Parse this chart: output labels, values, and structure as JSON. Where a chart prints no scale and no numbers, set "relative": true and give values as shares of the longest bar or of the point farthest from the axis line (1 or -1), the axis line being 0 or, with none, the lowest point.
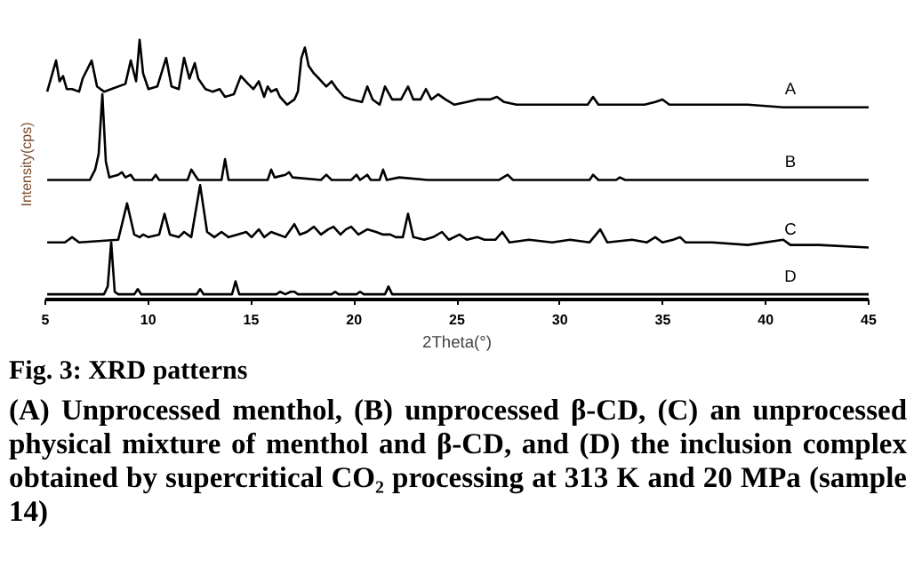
{
  "chart_data": {
    "type": "line",
    "relative": true,
    "title": "Fig. 3: XRD patterns",
    "annotations": [
      "(A) Unprocessed menthol, (B) unprocessed β-CD, (C) an unprocessed physical mixture of menthol and β-CD, and (D) the inclusion complex obtained by supercritical CO₂ processing at 313 K and 20 MPa (sample 14)"
    ],
    "xlabel": "2Theta(°)",
    "ylabel": "Intensity(cps)",
    "xlim": [
      5,
      45
    ],
    "xticks": [
      5,
      10,
      15,
      20,
      25,
      30,
      35,
      40,
      45
    ],
    "tick_labels": "x",
    "grid": false,
    "series": [
      {
        "name": "A",
        "color": "#000000",
        "x": [
          5.09,
          5.52,
          5.69,
          5.86,
          6.04,
          6.3,
          6.64,
          6.81,
          7.25,
          7.51,
          7.85,
          8.2,
          8.89,
          9.15,
          9.41,
          9.58,
          9.75,
          10.01,
          10.44,
          10.87,
          11.13,
          11.48,
          11.74,
          12.0,
          12.26,
          12.43,
          12.78,
          13.12,
          13.47,
          13.73,
          14.16,
          14.5,
          14.85,
          15.11,
          15.37,
          15.63,
          15.8,
          15.97,
          16.23,
          16.4,
          16.75,
          17.1,
          17.27,
          17.44,
          17.61,
          17.79,
          18.05,
          18.3,
          18.65,
          18.91,
          19.17,
          19.51,
          19.86,
          20.38,
          20.64,
          20.9,
          21.24,
          21.5,
          21.85,
          22.28,
          22.62,
          22.88,
          23.23,
          23.49,
          23.75,
          24.09,
          24.44,
          24.87,
          25.48,
          25.99,
          26.6,
          26.94,
          27.29,
          27.89,
          28.76,
          29.62,
          30.49,
          31.35,
          31.61,
          31.87,
          33.08,
          34.11,
          34.63,
          34.98,
          35.32,
          36.53,
          37.4,
          39.13,
          40.85,
          42.58,
          45
        ],
        "values": [
          0.8,
          0.92,
          0.84,
          0.86,
          0.81,
          0.81,
          0.8,
          0.85,
          0.92,
          0.82,
          0.8,
          0.81,
          0.83,
          0.92,
          0.84,
          1.0,
          0.87,
          0.81,
          0.82,
          0.93,
          0.82,
          0.81,
          0.93,
          0.85,
          0.91,
          0.85,
          0.81,
          0.8,
          0.81,
          0.78,
          0.79,
          0.86,
          0.83,
          0.81,
          0.84,
          0.78,
          0.82,
          0.8,
          0.81,
          0.78,
          0.75,
          0.77,
          0.8,
          0.93,
          0.97,
          0.9,
          0.87,
          0.85,
          0.82,
          0.84,
          0.81,
          0.78,
          0.77,
          0.76,
          0.82,
          0.77,
          0.75,
          0.82,
          0.77,
          0.77,
          0.82,
          0.77,
          0.77,
          0.81,
          0.77,
          0.79,
          0.77,
          0.75,
          0.76,
          0.77,
          0.77,
          0.78,
          0.76,
          0.75,
          0.75,
          0.75,
          0.75,
          0.75,
          0.78,
          0.75,
          0.75,
          0.75,
          0.76,
          0.77,
          0.75,
          0.75,
          0.75,
          0.75,
          0.74,
          0.74,
          0.74
        ]
      },
      {
        "name": "B",
        "color": "#000000",
        "x": [
          5.09,
          5.86,
          7.16,
          7.42,
          7.59,
          7.77,
          7.94,
          8.11,
          8.54,
          8.72,
          8.89,
          9.15,
          9.32,
          10.18,
          10.36,
          10.53,
          11.91,
          12.09,
          12.26,
          12.43,
          13.56,
          13.73,
          13.9,
          14.5,
          15.8,
          15.97,
          16.14,
          16.66,
          16.84,
          17.01,
          18.39,
          18.65,
          18.91,
          19.86,
          20.12,
          20.29,
          20.64,
          20.81,
          21.24,
          21.41,
          21.59,
          22.19,
          23.58,
          27.03,
          27.46,
          27.72,
          31.44,
          31.61,
          31.87,
          32.73,
          32.91,
          33.17,
          45
        ],
        "values": [
          0.46,
          0.46,
          0.46,
          0.5,
          0.56,
          0.79,
          0.53,
          0.47,
          0.48,
          0.49,
          0.47,
          0.48,
          0.46,
          0.46,
          0.48,
          0.46,
          0.46,
          0.5,
          0.48,
          0.46,
          0.46,
          0.54,
          0.46,
          0.46,
          0.46,
          0.5,
          0.47,
          0.48,
          0.49,
          0.47,
          0.46,
          0.48,
          0.46,
          0.46,
          0.48,
          0.46,
          0.48,
          0.46,
          0.46,
          0.5,
          0.46,
          0.47,
          0.46,
          0.46,
          0.48,
          0.46,
          0.46,
          0.48,
          0.46,
          0.46,
          0.47,
          0.46,
          0.46
        ]
      },
      {
        "name": "C",
        "color": "#000000",
        "x": [
          5.09,
          5.95,
          6.3,
          6.64,
          8.54,
          8.97,
          9.32,
          9.58,
          9.75,
          10.01,
          10.53,
          10.79,
          11.05,
          11.48,
          11.74,
          12.09,
          12.52,
          12.86,
          13.21,
          13.56,
          13.9,
          14.33,
          14.76,
          15.02,
          15.37,
          15.63,
          15.97,
          16.32,
          16.66,
          17.1,
          17.36,
          17.7,
          18.05,
          18.39,
          18.74,
          19.0,
          19.34,
          19.6,
          19.86,
          20.21,
          20.64,
          21.07,
          21.41,
          21.76,
          22.02,
          22.37,
          22.62,
          22.88,
          23.41,
          23.84,
          24.27,
          24.61,
          25.12,
          25.48,
          25.99,
          26.34,
          26.86,
          27.2,
          27.55,
          28.5,
          29.62,
          30.49,
          31.44,
          31.96,
          32.3,
          33.5,
          34.23,
          34.63,
          34.98,
          35.5,
          35.84,
          36.1,
          37.4,
          39.13,
          40.85,
          41.2,
          42.58,
          45
        ],
        "values": [
          0.22,
          0.22,
          0.24,
          0.22,
          0.23,
          0.37,
          0.25,
          0.24,
          0.25,
          0.24,
          0.25,
          0.33,
          0.25,
          0.24,
          0.26,
          0.24,
          0.44,
          0.26,
          0.24,
          0.26,
          0.24,
          0.25,
          0.26,
          0.24,
          0.27,
          0.24,
          0.26,
          0.25,
          0.24,
          0.29,
          0.25,
          0.26,
          0.28,
          0.25,
          0.27,
          0.28,
          0.25,
          0.27,
          0.28,
          0.25,
          0.27,
          0.26,
          0.25,
          0.25,
          0.24,
          0.24,
          0.33,
          0.24,
          0.23,
          0.24,
          0.26,
          0.23,
          0.25,
          0.23,
          0.24,
          0.23,
          0.23,
          0.26,
          0.22,
          0.23,
          0.22,
          0.23,
          0.22,
          0.27,
          0.22,
          0.23,
          0.22,
          0.24,
          0.22,
          0.23,
          0.24,
          0.22,
          0.22,
          0.21,
          0.23,
          0.21,
          0.21,
          0.2
        ]
      },
      {
        "name": "D",
        "color": "#000000",
        "x": [
          5.09,
          7.85,
          8.03,
          8.2,
          8.37,
          8.54,
          9.32,
          9.49,
          9.66,
          12.35,
          12.52,
          12.69,
          14.07,
          14.24,
          14.42,
          16.23,
          16.4,
          16.66,
          16.92,
          17.1,
          17.27,
          18.91,
          19.08,
          19.25,
          20.12,
          20.29,
          20.47,
          21.5,
          21.67,
          21.85,
          45
        ],
        "values": [
          0.02,
          0.02,
          0.05,
          0.22,
          0.03,
          0.02,
          0.02,
          0.04,
          0.02,
          0.02,
          0.04,
          0.02,
          0.02,
          0.07,
          0.02,
          0.02,
          0.03,
          0.02,
          0.03,
          0.03,
          0.02,
          0.02,
          0.03,
          0.02,
          0.02,
          0.03,
          0.02,
          0.02,
          0.05,
          0.02,
          0.02
        ]
      }
    ]
  }
}
